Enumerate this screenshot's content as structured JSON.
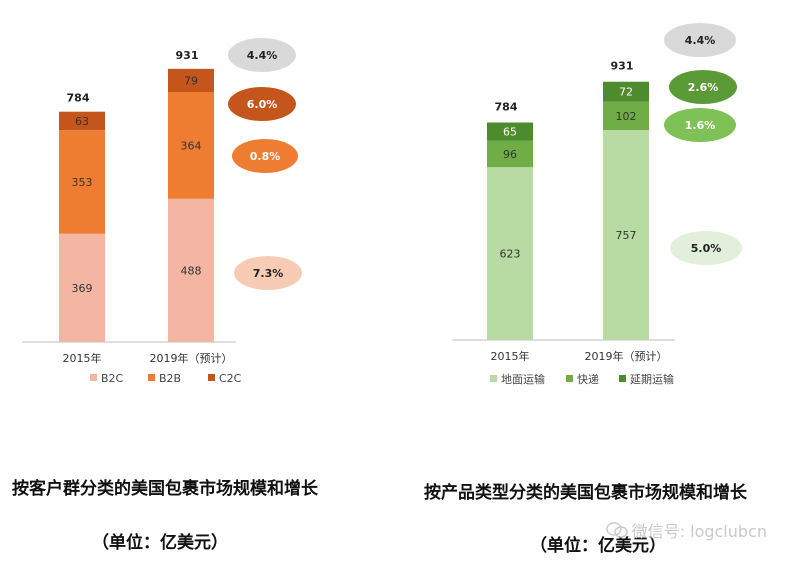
{
  "chart_data": [
    {
      "type": "bar",
      "stacked": true,
      "categories": [
        "2015年",
        "2019年（预计）"
      ],
      "totals": [
        "784",
        "931"
      ],
      "series": [
        {
          "name": "B2C",
          "color": "#f4b6a3",
          "values": [
            369,
            488
          ]
        },
        {
          "name": "B2B",
          "color": "#ee7d31",
          "values": [
            353,
            364
          ]
        },
        {
          "name": "C2C",
          "color": "#c4561c",
          "values": [
            63,
            79
          ]
        }
      ],
      "growth_labels": [
        {
          "text": "4.4%",
          "fill": "#d9d9d9",
          "text_color": "#222222",
          "series": "total"
        },
        {
          "text": "6.0%",
          "fill": "#c4561c",
          "text_color": "#ffffff",
          "series": "C2C"
        },
        {
          "text": "0.8%",
          "fill": "#ee7d31",
          "text_color": "#ffffff",
          "series": "B2B"
        },
        {
          "text": "7.3%",
          "fill": "#f8cbb5",
          "text_color": "#222222",
          "series": "B2C"
        }
      ],
      "legend_position": "bottom",
      "caption": "按客户群分类的美国包裹市场规模和增长",
      "unit_caption": "（单位：亿美元）"
    },
    {
      "type": "bar",
      "stacked": true,
      "categories": [
        "2015年",
        "2019年（预计）"
      ],
      "totals": [
        "784",
        "931"
      ],
      "series": [
        {
          "name": "地面运输",
          "color": "#b7dba3",
          "values": [
            623,
            757
          ]
        },
        {
          "name": "快递",
          "color": "#70ad47",
          "values": [
            96,
            102
          ]
        },
        {
          "name": "延期运输",
          "color": "#4e8a2e",
          "values": [
            65,
            72
          ]
        }
      ],
      "growth_labels": [
        {
          "text": "4.4%",
          "fill": "#d9d9d9",
          "text_color": "#222222",
          "series": "total"
        },
        {
          "text": "2.6%",
          "fill": "#5a9a37",
          "text_color": "#ffffff",
          "series": "延期运输"
        },
        {
          "text": "1.6%",
          "fill": "#7ec156",
          "text_color": "#ffffff",
          "series": "快递"
        },
        {
          "text": "5.0%",
          "fill": "#e2efda",
          "text_color": "#222222",
          "series": "地面运输"
        }
      ],
      "legend_position": "bottom",
      "caption": "按产品类型分类的美国包裹市场规模和增长",
      "unit_caption": "（单位：亿美元）"
    }
  ],
  "watermark": {
    "text": "微信号: logclubcn"
  }
}
